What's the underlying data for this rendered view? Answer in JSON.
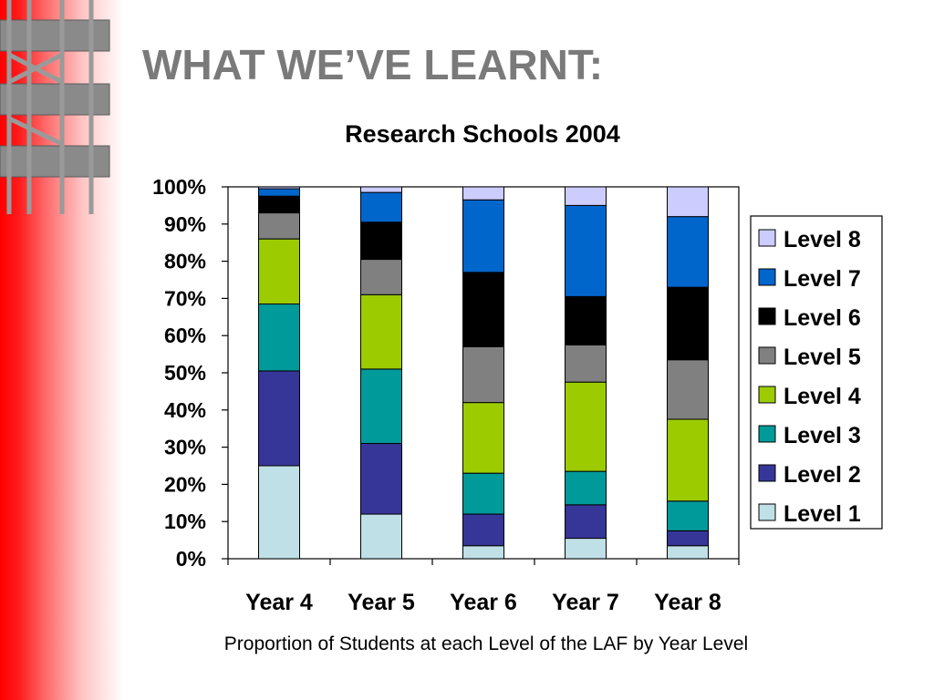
{
  "slide": {
    "title": "WHAT WE’VE LEARNT:"
  },
  "chart_data": {
    "type": "bar",
    "stacked": "percent",
    "title": "Research Schools 2004",
    "caption": "Proportion of Students at each Level of the LAF by Year Level",
    "categories": [
      "Year 4",
      "Year 5",
      "Year 6",
      "Year 7",
      "Year 8"
    ],
    "y_ticks": [
      "0%",
      "10%",
      "20%",
      "30%",
      "40%",
      "50%",
      "60%",
      "70%",
      "80%",
      "90%",
      "100%"
    ],
    "ylim": [
      0,
      100
    ],
    "legend_position": "right",
    "series": [
      {
        "name": "Level 1",
        "color": "#bfe0e6",
        "values": [
          25,
          12,
          3.5,
          5.5,
          3.5
        ]
      },
      {
        "name": "Level 2",
        "color": "#363699",
        "values": [
          25.5,
          19,
          8.5,
          9,
          4
        ]
      },
      {
        "name": "Level 3",
        "color": "#009a9a",
        "values": [
          18,
          20,
          11,
          9,
          8
        ]
      },
      {
        "name": "Level 4",
        "color": "#9ccc00",
        "values": [
          17.5,
          20,
          19,
          24,
          22
        ]
      },
      {
        "name": "Level 5",
        "color": "#808080",
        "values": [
          7,
          9.5,
          15,
          10,
          16
        ]
      },
      {
        "name": "Level 6",
        "color": "#000000",
        "values": [
          4.5,
          10,
          20,
          13,
          19.5
        ]
      },
      {
        "name": "Level 7",
        "color": "#0066cc",
        "values": [
          2,
          8,
          19.5,
          24.5,
          19
        ]
      },
      {
        "name": "Level 8",
        "color": "#ccccff",
        "values": [
          0.5,
          1.5,
          3.5,
          5,
          8
        ]
      }
    ]
  }
}
